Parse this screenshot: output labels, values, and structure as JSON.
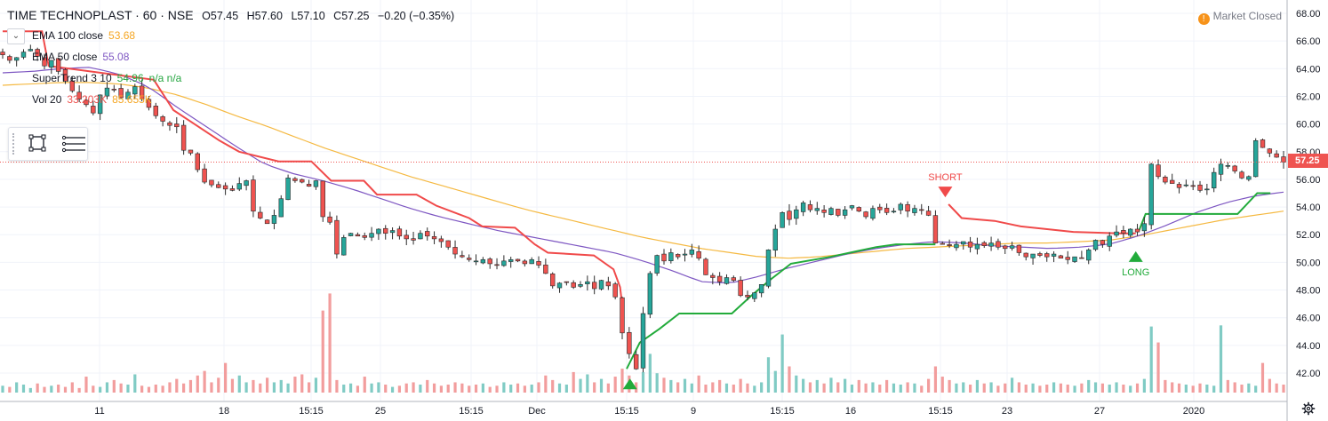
{
  "header": {
    "symbol": "TIME TECHNOPLAST · 60 · NSE",
    "open": "O57.45",
    "high": "H57.60",
    "low": "L57.10",
    "close": "C57.25",
    "change": "−0.20 (−0.35%)"
  },
  "legend": [
    {
      "label": "EMA 100 close",
      "value": "53.68",
      "color": "#f5a623"
    },
    {
      "label": "EMA 50 close",
      "value": "55.08",
      "color": "#7e57c2"
    },
    {
      "label": "SuperTrend 3 10",
      "value": "54.96",
      "extra": "n/a n/a",
      "color": "#26a641"
    },
    {
      "label": "Vol 20",
      "value": "33.203K",
      "extra": "85.655K",
      "color": "#ef5350"
    }
  ],
  "status": {
    "icon": "alert-icon",
    "glyph": "!",
    "text": "Market Closed",
    "color": "#f7931a"
  },
  "price_tag": "57.25",
  "colors": {
    "up": "#26a69a",
    "down": "#ef5350",
    "up_vol": "#80cbc4",
    "down_vol": "#f29d9d",
    "ema100": "#f5b942",
    "ema50": "#7e57c2",
    "st_up": "#22ab3b",
    "st_down": "#f04a4a",
    "grid": "#f0f3fa",
    "axis_text": "#131722"
  },
  "chart_data": {
    "type": "candlestick",
    "title": "TIME TECHNOPLAST · 60 · NSE",
    "ylim": [
      41,
      68.5
    ],
    "y_ticks": [
      "68.00",
      "66.00",
      "64.00",
      "62.00",
      "60.00",
      "58.00",
      "56.00",
      "54.00",
      "52.00",
      "50.00",
      "48.00",
      "46.00",
      "44.00",
      "42.00"
    ],
    "x_ticks": [
      "11",
      "18",
      "15:15",
      "25",
      "15:15",
      "Dec",
      "15:15",
      "9",
      "15:15",
      "16",
      "15:15",
      "23",
      "27",
      "2020"
    ],
    "last_price": 57.25,
    "grid": true,
    "close_path": [
      65,
      64.6,
      64.8,
      65.2,
      65.4,
      64.9,
      64.2,
      64.6,
      63.8,
      63.1,
      62.4,
      61.8,
      61.4,
      60.8,
      62.1,
      62.6,
      62.5,
      61.9,
      62.3,
      62.7,
      61.8,
      61.2,
      60.6,
      60.2,
      59.9,
      59.8,
      58.1,
      57.9,
      56.7,
      55.8,
      55.6,
      55.4,
      55.3,
      55.2,
      55.7,
      55.9,
      53.7,
      53.2,
      52.8,
      53.4,
      54.6,
      56.1,
      55.9,
      55.8,
      55.5,
      55.9,
      53.3,
      52.9,
      50.6,
      51.8,
      52.1,
      51.9,
      51.8,
      52.1,
      52.4,
      52.1,
      52.3,
      51.9,
      51.7,
      51.6,
      52.1,
      51.9,
      51.7,
      51.5,
      51.1,
      50.6,
      50.4,
      50.2,
      50.1,
      50.2,
      49.9,
      49.8,
      50.1,
      50.2,
      50.1,
      49.9,
      50.2,
      49.8,
      49.2,
      48.3,
      48.5,
      48.6,
      48.2,
      48.4,
      48.6,
      48.1,
      48.7,
      48.3,
      47.5,
      44.9,
      43.4,
      42.3,
      46.3,
      49.2,
      50.5,
      50.1,
      50.7,
      50.4,
      50.6,
      50.9,
      50.3,
      49.1,
      48.9,
      48.6,
      48.9,
      48.7,
      47.6,
      47.5,
      47.8,
      48.4,
      50.9,
      52.4,
      53.6,
      53.1,
      53.8,
      54.3,
      53.8,
      53.9,
      53.6,
      53.9,
      53.4,
      53.8,
      54.1,
      53.7,
      53.3,
      53.9,
      53.8,
      53.6,
      53.7,
      54.2,
      53.7,
      53.9,
      53.8,
      53.4,
      51.4,
      51.3,
      51.2,
      51.3,
      51.5,
      51.1,
      51.3,
      51.2,
      51.4,
      51.1,
      51.0,
      51.2,
      50.7,
      50.4,
      50.6,
      50.5,
      50.4,
      50.6,
      50.3,
      50.2,
      50.4,
      50.3,
      50.9,
      51.6,
      51.3,
      51.9,
      52.2,
      52.1,
      52.4,
      52.2,
      52.8,
      57.1,
      56.2,
      55.8,
      55.7,
      55.4,
      55.6,
      55.5,
      55.2,
      55.3,
      56.5,
      57.1,
      57.0,
      56.6,
      56.1,
      56.2,
      58.8,
      58.3,
      57.9,
      57.6,
      57.25
    ],
    "volume_path": [
      0.6,
      0.5,
      0.9,
      0.7,
      0.4,
      0.8,
      0.5,
      0.6,
      0.7,
      0.5,
      0.9,
      0.4,
      1.4,
      0.6,
      0.5,
      0.9,
      1.1,
      0.8,
      0.7,
      1.6,
      0.6,
      0.5,
      0.7,
      0.6,
      0.9,
      1.2,
      0.8,
      1.1,
      1.5,
      1.9,
      0.9,
      1.3,
      2.6,
      1.2,
      1.5,
      0.9,
      1.1,
      0.8,
      1.3,
      0.9,
      1.1,
      0.8,
      1.4,
      1.6,
      0.9,
      1.3,
      7.2,
      8.7,
      1.1,
      0.7,
      0.8,
      0.6,
      1.4,
      0.8,
      0.9,
      0.7,
      0.5,
      0.6,
      0.8,
      0.9,
      0.7,
      1.1,
      0.8,
      0.6,
      0.7,
      0.9,
      0.8,
      0.6,
      0.7,
      0.8,
      0.5,
      0.6,
      0.9,
      0.7,
      0.8,
      0.6,
      0.7,
      0.9,
      1.5,
      1.1,
      0.8,
      0.7,
      1.8,
      1.2,
      1.6,
      0.9,
      1.2,
      0.8,
      1.4,
      2.1,
      1.5,
      0.9,
      1.8,
      3.4,
      1.7,
      1.3,
      1.1,
      0.9,
      1.2,
      0.8,
      1.5,
      0.7,
      0.9,
      1.1,
      0.8,
      0.7,
      1.2,
      0.8,
      0.6,
      0.9,
      3.1,
      1.9,
      5.1,
      2.3,
      1.5,
      1.2,
      0.9,
      1.1,
      0.8,
      1.3,
      0.9,
      1.2,
      0.7,
      1.1,
      0.8,
      0.9,
      0.7,
      1.1,
      0.8,
      0.7,
      0.9,
      0.8,
      0.6,
      1.2,
      2.3,
      1.4,
      1.1,
      0.8,
      0.9,
      0.7,
      1.1,
      0.8,
      0.9,
      0.6,
      0.8,
      1.3,
      0.9,
      0.7,
      0.8,
      0.6,
      0.7,
      0.9,
      0.8,
      0.7,
      0.6,
      0.8,
      1.1,
      0.9,
      0.8,
      0.7,
      0.9,
      0.7,
      0.6,
      0.8,
      1.2,
      5.8,
      4.4,
      1.1,
      0.9,
      0.8,
      0.7,
      0.6,
      0.8,
      0.7,
      0.6,
      5.9,
      1.1,
      0.9,
      0.7,
      0.8,
      0.6,
      2.6,
      1.2,
      0.8,
      0.7,
      0.6
    ],
    "ema100_path": [
      62.8,
      62.9,
      63.0,
      63.0,
      62.9,
      62.6,
      62.1,
      61.4,
      60.6,
      59.9,
      59.1,
      58.3,
      57.6,
      56.9,
      56.2,
      55.6,
      55.0,
      54.4,
      53.8,
      53.3,
      52.8,
      52.3,
      51.8,
      51.4,
      51.0,
      50.7,
      50.4,
      50.3,
      50.4,
      50.6,
      50.8,
      51.0,
      51.1,
      51.2,
      51.3,
      51.4,
      51.4,
      51.5,
      51.6,
      51.9,
      52.3,
      52.7,
      53.1,
      53.4,
      53.7
    ],
    "ema50_path": [
      63.7,
      63.8,
      64.0,
      64.1,
      63.6,
      62.7,
      61.2,
      59.8,
      58.4,
      57.1,
      56.4,
      55.9,
      55.3,
      54.6,
      53.9,
      53.3,
      52.8,
      52.3,
      51.9,
      51.5,
      51.1,
      50.7,
      50.1,
      49.4,
      48.6,
      48.5,
      49.0,
      49.6,
      50.1,
      50.6,
      51.0,
      51.3,
      51.5,
      51.4,
      51.2,
      51.1,
      51.0,
      51.1,
      51.3,
      51.9,
      52.7,
      53.6,
      54.3,
      54.8,
      55.08
    ],
    "supertrend": {
      "down_segments": [
        [
          [
            0,
            66.7
          ],
          [
            12,
            66.7
          ],
          [
            14,
            64.2
          ],
          [
            46,
            63.2
          ],
          [
            52,
            61.0
          ],
          [
            66,
            58.8
          ],
          [
            72,
            58.0
          ],
          [
            84,
            57.3
          ],
          [
            94,
            57.3
          ],
          [
            100,
            55.9
          ],
          [
            110,
            55.9
          ],
          [
            114,
            54.9
          ],
          [
            126,
            54.9
          ],
          [
            132,
            54.1
          ],
          [
            142,
            53.2
          ],
          [
            146,
            52.6
          ],
          [
            156,
            52.5
          ],
          [
            162,
            51.3
          ],
          [
            166,
            50.7
          ],
          [
            180,
            50.5
          ],
          [
            186,
            49.5
          ],
          [
            188,
            48.2
          ],
          [
            189,
            46.2
          ]
        ],
        [
          [
            288,
            54.2
          ],
          [
            292,
            53.2
          ],
          [
            302,
            53.0
          ],
          [
            310,
            52.6
          ],
          [
            318,
            52.4
          ],
          [
            326,
            52.2
          ],
          [
            340,
            52.1
          ],
          [
            345,
            52.1
          ]
        ]
      ],
      "up_segments": [
        [
          [
            190,
            42.3
          ],
          [
            194,
            44.2
          ],
          [
            200,
            45.2
          ],
          [
            206,
            46.3
          ],
          [
            212,
            46.3
          ],
          [
            222,
            46.3
          ],
          [
            228,
            47.6
          ],
          [
            234,
            48.8
          ],
          [
            240,
            49.9
          ],
          [
            252,
            50.4
          ],
          [
            260,
            50.8
          ],
          [
            266,
            51.1
          ],
          [
            272,
            51.3
          ],
          [
            284,
            51.3
          ]
        ],
        [
          [
            346,
            52.3
          ],
          [
            348,
            53.5
          ],
          [
            360,
            53.5
          ],
          [
            376,
            53.5
          ],
          [
            382,
            55.0
          ],
          [
            386,
            55.0
          ]
        ]
      ]
    },
    "signals": [
      {
        "type": "short",
        "label": "SHORT",
        "index": 287,
        "price": 54.7
      },
      {
        "type": "long",
        "label": "LONG",
        "index": 345,
        "price": 50.8
      },
      {
        "type": "long",
        "label": "",
        "index": 191,
        "price": 41.6
      }
    ]
  }
}
